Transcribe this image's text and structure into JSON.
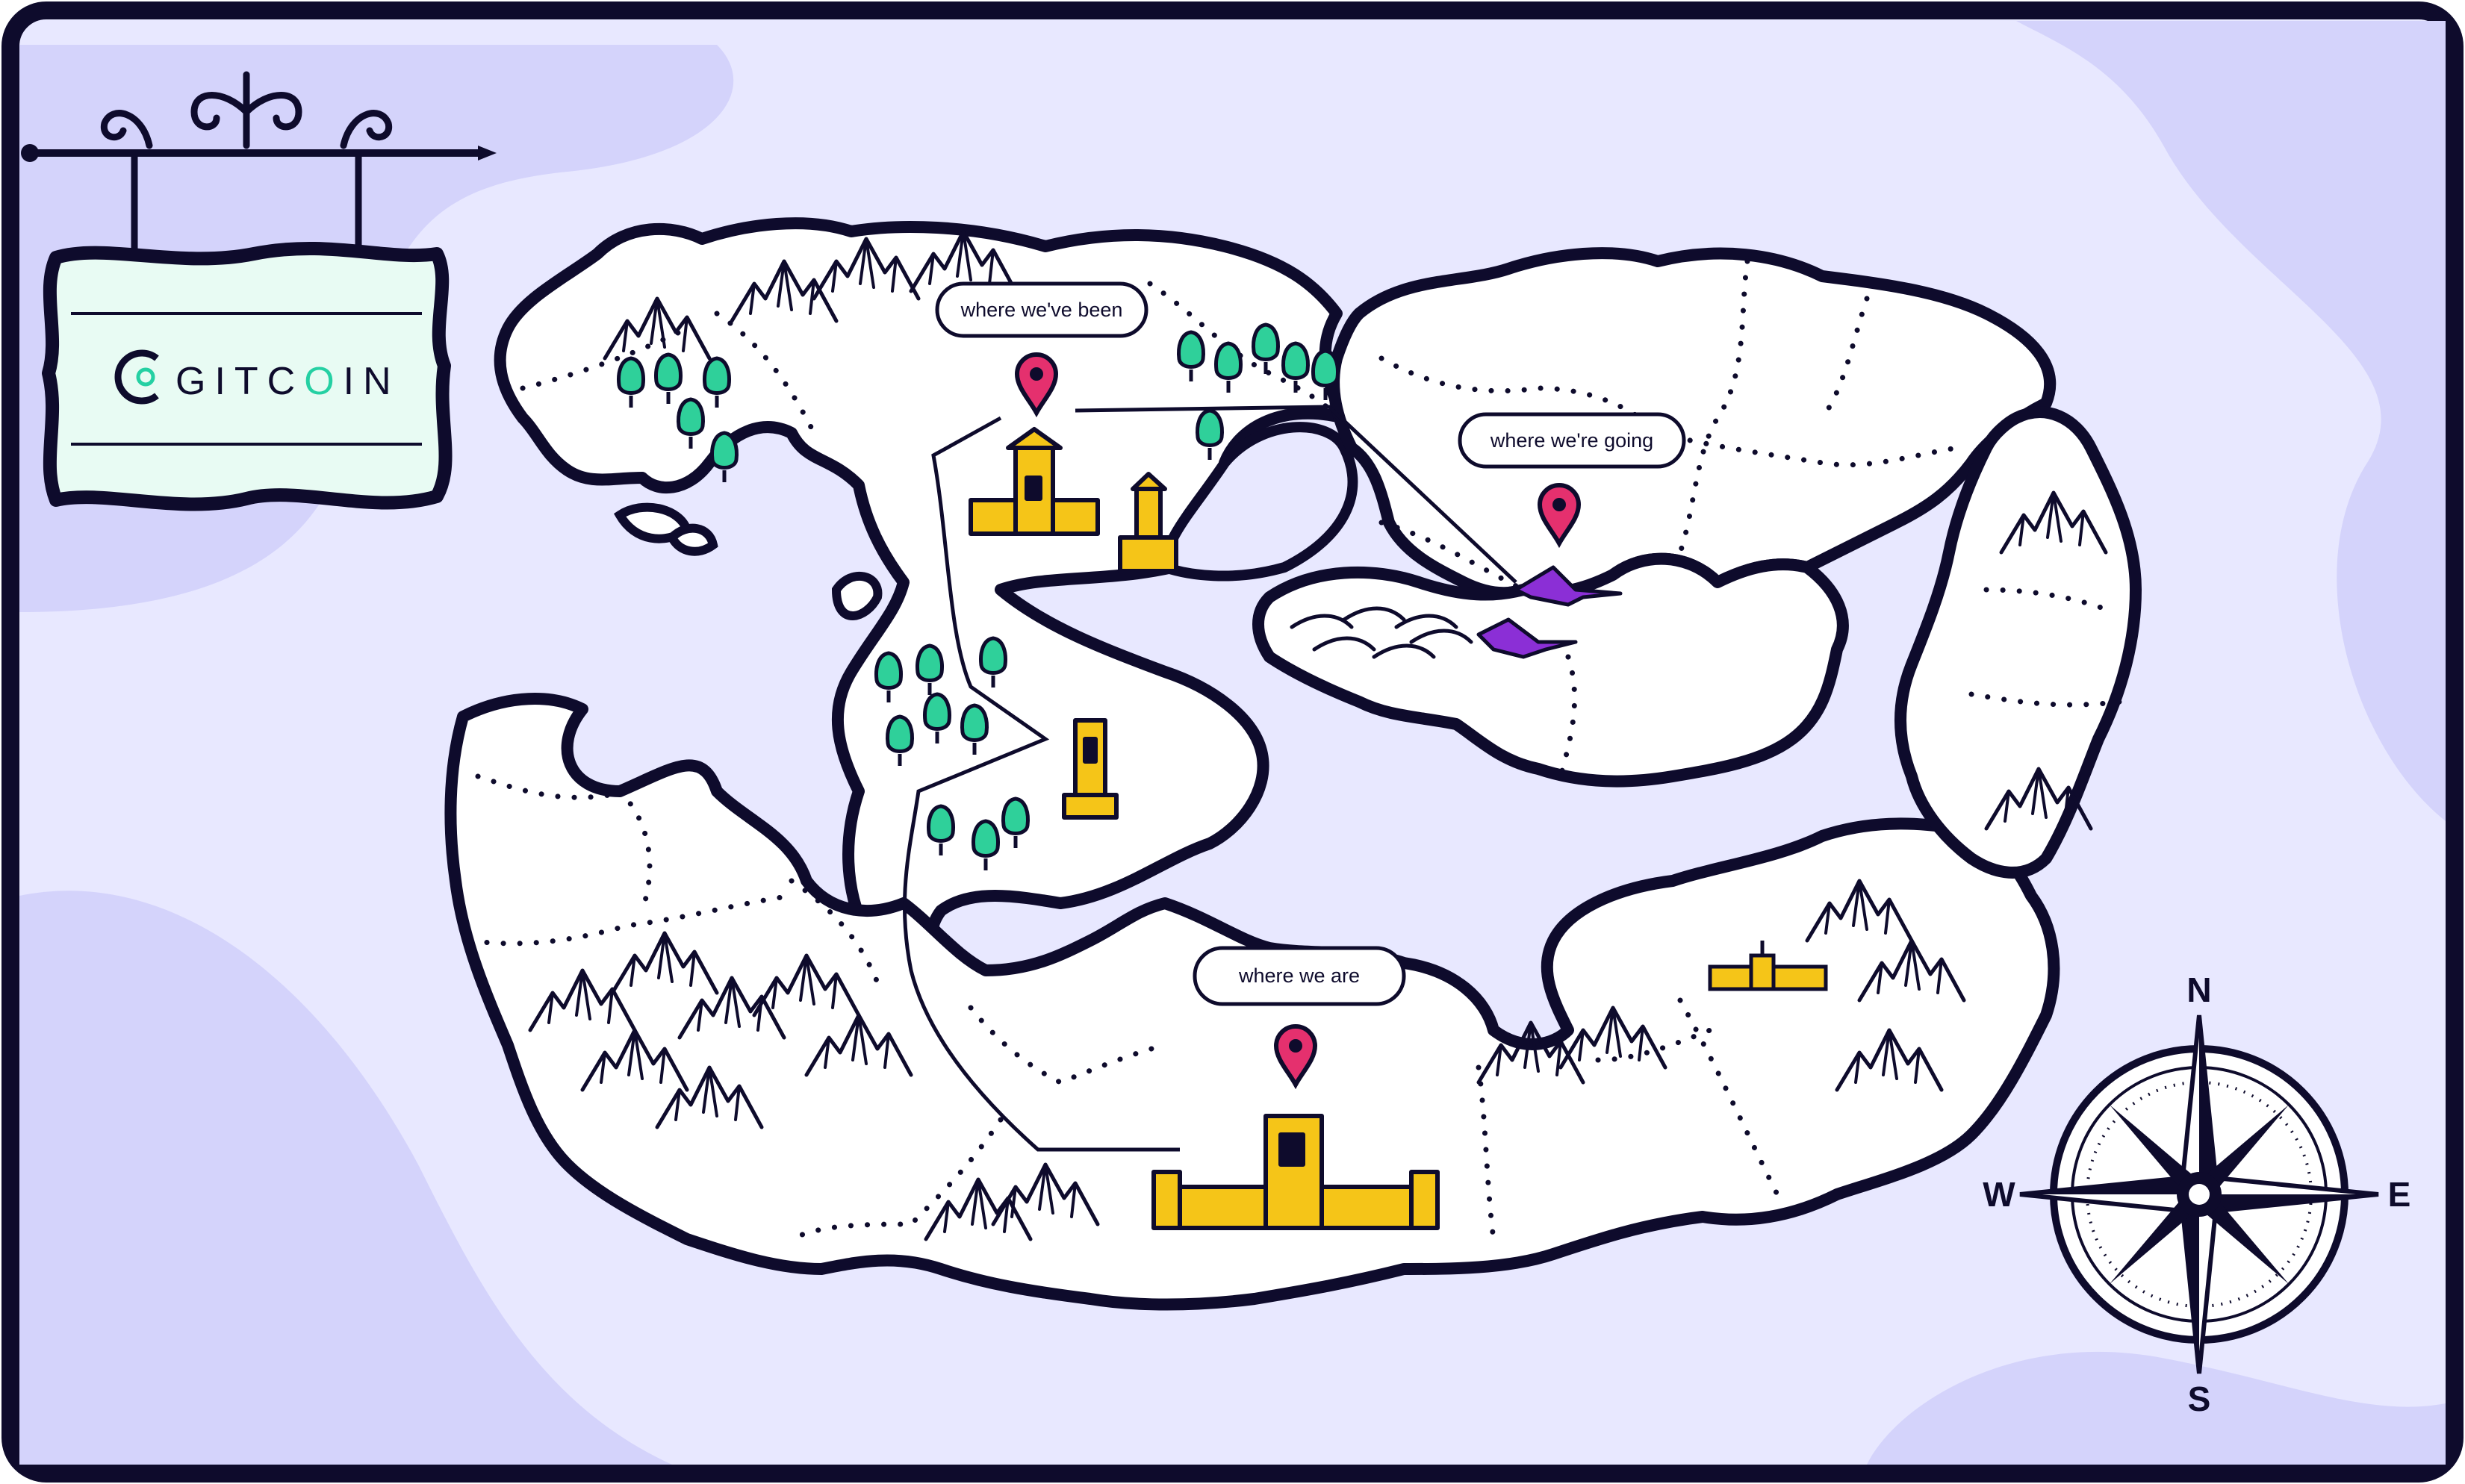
{
  "sign": {
    "brand": "GITCOIN",
    "brand_parts": [
      "GITC",
      "O",
      "IN"
    ],
    "logo_icon": "gitcoin-logo-icon",
    "sign_color": "#e8fbf3",
    "accent_color": "#25d0a3"
  },
  "callouts": {
    "been": "where we've been",
    "going": "where we're going",
    "are": "where we are"
  },
  "compass": {
    "n": "N",
    "e": "E",
    "s": "S",
    "w": "W"
  },
  "colors": {
    "sea": "#e8e8ff",
    "sea_dark": "#d4d3fb",
    "land": "#ffffff",
    "outline": "#0e0b2c",
    "castle": "#f5c518",
    "pin": "#e5306e",
    "tree": "#2fd09a",
    "dragon": "#8b2fd6"
  },
  "icons": [
    "map-pin-icon",
    "castle-icon",
    "tower-icon",
    "tree-icon",
    "dragon-icon",
    "mountain-icon",
    "compass-rose-icon",
    "fort-icon"
  ]
}
